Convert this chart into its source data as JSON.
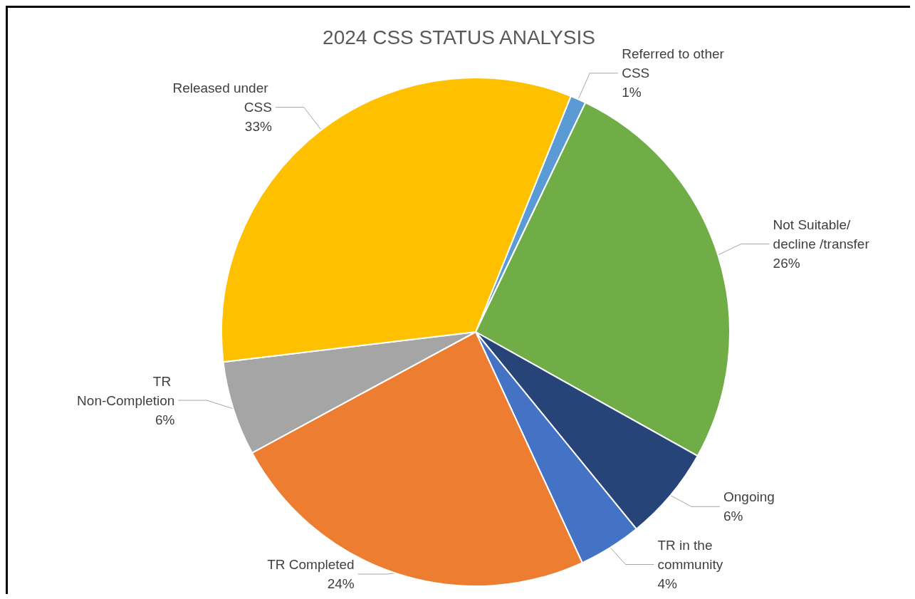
{
  "chart_data": {
    "type": "pie",
    "title": "2024 CSS STATUS ANALYSIS",
    "categories": [
      "Referred to other CSS",
      "Not Suitable/ decline /transfer",
      "Ongoing",
      "TR in the community",
      "TR Completed",
      "TR Non-Completion",
      "Released under CSS"
    ],
    "values": [
      1,
      26,
      6,
      4,
      24,
      6,
      33
    ],
    "value_labels": [
      "1%",
      "26%",
      "6%",
      "4%",
      "24%",
      "6%",
      "33%"
    ],
    "colors": [
      "#5b9bd5",
      "#70ad47",
      "#264478",
      "#4472c4",
      "#ed7d31",
      "#a5a5a5",
      "#ffc000"
    ]
  }
}
